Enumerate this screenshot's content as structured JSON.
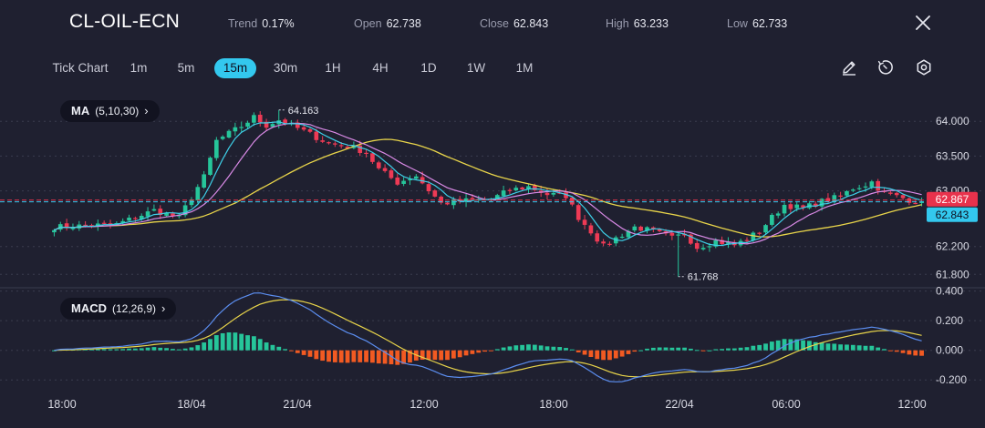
{
  "header": {
    "symbol": "CL-OIL-ECN",
    "stats": [
      {
        "label": "Trend",
        "value": "0.17%"
      },
      {
        "label": "Open",
        "value": "62.738"
      },
      {
        "label": "Close",
        "value": "62.843"
      },
      {
        "label": "High",
        "value": "63.233"
      },
      {
        "label": "Low",
        "value": "62.733"
      }
    ]
  },
  "toolbar": {
    "timeframes": [
      "Tick Chart",
      "1m",
      "5m",
      "15m",
      "30m",
      "1H",
      "4H",
      "1D",
      "1W",
      "1M"
    ],
    "active": "15m",
    "icons": [
      "pencil-icon",
      "timer-icon",
      "settings-icon"
    ]
  },
  "indicators": {
    "ma": {
      "name": "MA",
      "params": "(5,10,30)",
      "chevron": "›"
    },
    "macd": {
      "name": "MACD",
      "params": "(12,26,9)",
      "chevron": "›"
    }
  },
  "colors": {
    "background": "#1f2030",
    "up": "#26c59a",
    "down": "#ee3a55",
    "ma5": "#3ed0e8",
    "ma10": "#d98ae6",
    "ma30": "#e8d44a",
    "macd": "#5b8def",
    "signal": "#e8d44a",
    "hist_up": "#26c59a",
    "hist_down": "#f25a22",
    "close_tag": "#33c8ee",
    "mark_tag": "#e8324c"
  },
  "chart_data": {
    "type": "candlestick",
    "symbol": "CL-OIL-ECN",
    "timeframe": "15m",
    "x_ticks": [
      "18:00",
      "18/04",
      "21/04",
      "12:00",
      "18:00",
      "22/04",
      "06:00",
      "12:00"
    ],
    "price_axis": {
      "ticks": [
        "64.000",
        "63.500",
        "63.000",
        "62.200",
        "61.800"
      ],
      "ylim": [
        61.66,
        64.33
      ]
    },
    "macd_axis": {
      "ticks": [
        "0.400",
        "0.200",
        "0.000",
        "-0.200"
      ],
      "ylim": [
        -0.26,
        0.41
      ]
    },
    "markers": {
      "high": "64.163",
      "low": "61.768"
    },
    "price_labels": {
      "mark": "62.867",
      "close": "62.843"
    },
    "price_path": [
      [
        0,
        62.48
      ],
      [
        10,
        62.52
      ],
      [
        16,
        62.72
      ],
      [
        20,
        62.62
      ],
      [
        24,
        63.2
      ],
      [
        26,
        63.72
      ],
      [
        30,
        63.93
      ],
      [
        32,
        64.06
      ],
      [
        34,
        63.94
      ],
      [
        36,
        64.02
      ],
      [
        40,
        63.86
      ],
      [
        44,
        63.68
      ],
      [
        48,
        63.62
      ],
      [
        50,
        63.55
      ],
      [
        52,
        63.31
      ],
      [
        55,
        63.12
      ],
      [
        58,
        63.22
      ],
      [
        60,
        63.01
      ],
      [
        62,
        62.82
      ],
      [
        66,
        62.86
      ],
      [
        70,
        62.88
      ],
      [
        73,
        63.01
      ],
      [
        76,
        63.06
      ],
      [
        79,
        62.95
      ],
      [
        82,
        62.93
      ],
      [
        84,
        62.62
      ],
      [
        86,
        62.42
      ],
      [
        88,
        62.2
      ],
      [
        90,
        62.32
      ],
      [
        93,
        62.48
      ],
      [
        96,
        62.42
      ],
      [
        99,
        62.32
      ],
      [
        101,
        62.38
      ],
      [
        103,
        62.19
      ],
      [
        106,
        62.28
      ],
      [
        109,
        62.22
      ],
      [
        111,
        62.31
      ],
      [
        113,
        62.42
      ],
      [
        115,
        62.62
      ],
      [
        117,
        62.8
      ],
      [
        120,
        62.75
      ],
      [
        123,
        62.85
      ],
      [
        126,
        62.92
      ],
      [
        128,
        63.04
      ],
      [
        130,
        63.09
      ],
      [
        131,
        63.13
      ],
      [
        133,
        62.96
      ],
      [
        135,
        62.92
      ],
      [
        137,
        62.87
      ],
      [
        139,
        62.84
      ]
    ],
    "high_marker": {
      "x": 36,
      "value": 64.163
    },
    "low_marker": {
      "x": 100,
      "value": 61.768
    },
    "series": [
      {
        "name": "MA5",
        "period": 5
      },
      {
        "name": "MA10",
        "period": 10
      },
      {
        "name": "MA30",
        "period": 30
      }
    ],
    "macd": {
      "fast": 12,
      "slow": 26,
      "signal": 9
    }
  }
}
